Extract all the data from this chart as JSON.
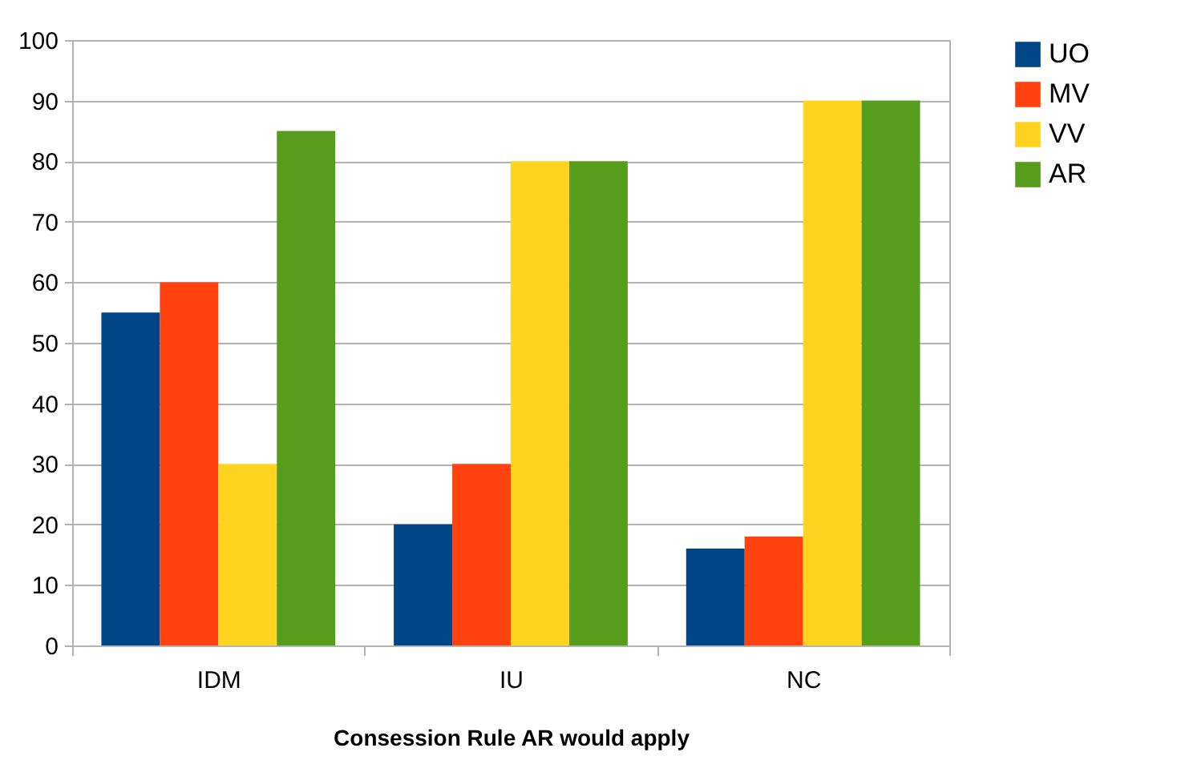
{
  "chart_data": {
    "type": "bar",
    "xlabel": "Consession Rule AR would apply",
    "categories": [
      "IDM",
      "IU",
      "NC"
    ],
    "series": [
      {
        "name": "UO",
        "color": "#004586",
        "values": [
          55,
          20,
          16
        ]
      },
      {
        "name": "MV",
        "color": "#ff420e",
        "values": [
          60,
          30,
          18
        ]
      },
      {
        "name": "VV",
        "color": "#ffd320",
        "values": [
          30,
          80,
          90
        ]
      },
      {
        "name": "AR",
        "color": "#579d1c",
        "values": [
          85,
          80,
          90
        ]
      }
    ],
    "ylim": [
      0,
      100
    ],
    "yticks": [
      0,
      10,
      20,
      30,
      40,
      50,
      60,
      70,
      80,
      90,
      100
    ],
    "grid": "y",
    "legend": "right"
  }
}
